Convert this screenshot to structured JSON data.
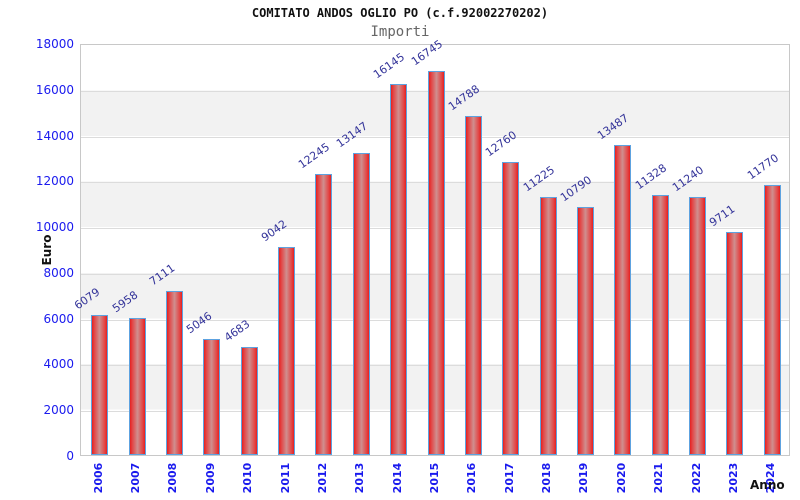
{
  "chart_data": {
    "type": "bar",
    "title": "COMITATO ANDOS OGLIO PO (c.f.92002270202)",
    "subtitle": "Importi",
    "xlabel": "Anno",
    "ylabel": "Euro",
    "categories": [
      "2006",
      "2007",
      "2008",
      "2009",
      "2010",
      "2011",
      "2012",
      "2013",
      "2014",
      "2015",
      "2016",
      "2017",
      "2018",
      "2019",
      "2020",
      "2021",
      "2022",
      "2023",
      "2024"
    ],
    "values": [
      6079,
      5958,
      7111,
      5046,
      4683,
      9042,
      12245,
      13147,
      16145,
      16745,
      14788,
      12760,
      11225,
      10790,
      13487,
      11328,
      11240,
      9711,
      11770
    ],
    "ylim": [
      0,
      18000
    ],
    "ytick_step": 2000,
    "grid": "horizontal-bands",
    "legend": "none",
    "colors": {
      "bar_fill_edge": "#e62020",
      "bar_fill_center": "#cf8f8f",
      "bar_border": "#5da2e0",
      "axis_tick_text": "#1a1aee",
      "value_label_text": "#333399",
      "band_fill": "#f2f2f2",
      "gridline": "#dcdcdc",
      "title_text": "#111111",
      "subtitle_text": "#666666"
    }
  }
}
